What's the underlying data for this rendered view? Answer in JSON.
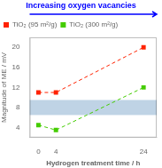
{
  "chart_data": {
    "type": "line",
    "xlabel": "Hydrogen treatment time / h",
    "ylabel": "Magnitude of ME / mV",
    "annotation": {
      "text": "Increasing oxygen vacancies",
      "color": "#0000ff"
    },
    "x": [
      0,
      4,
      24
    ],
    "series": [
      {
        "name": "TiO₂ (95 m²/g)",
        "color": "#ff2200",
        "values": [
          11.0,
          11.0,
          20.0
        ],
        "marker": "square",
        "line_style": "dashed"
      },
      {
        "name": "TiO₂ (300 m²/g)",
        "color": "#44cc00",
        "values": [
          4.5,
          3.5,
          12.0
        ],
        "marker": "square",
        "line_style": "dashed"
      }
    ],
    "xlim": [
      -2,
      27
    ],
    "xticks": [
      0,
      4,
      24
    ],
    "ylim": [
      2,
      22
    ],
    "yticks": [
      4,
      8,
      12,
      16,
      20
    ],
    "grid": false,
    "legend": "upper left",
    "band": {
      "from": 6.5,
      "to": 9.5,
      "color": "#aac4dc"
    }
  }
}
